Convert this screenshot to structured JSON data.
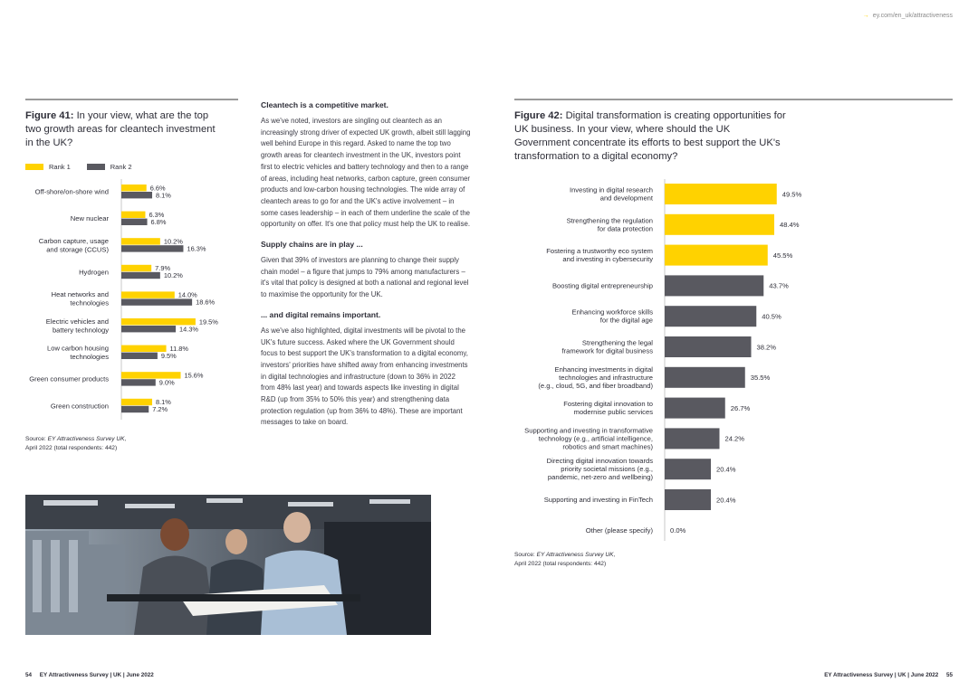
{
  "header": {
    "url": "ey.com/en_uk/attractiveness"
  },
  "fig41": {
    "label": "Figure 41:",
    "title": "In your view, what are the top two growth areas for cleantech investment in the UK?",
    "source_prefix": "Source: ",
    "source_title": "EY Attractiveness Survey UK,",
    "source_suffix": "April 2022 (total respondents: 442)"
  },
  "fig42": {
    "label": "Figure 42:",
    "title": "Digital transformation is creating opportunities for UK business. In your view, where should the UK Government concentrate its efforts to best support the UK's transformation to a digital economy?",
    "source_prefix": "Source: ",
    "source_title": "EY Attractiveness Survey UK,",
    "source_suffix": "April 2022 (total respondents: 442)"
  },
  "article": {
    "h1": "Cleantech is a competitive market.",
    "p1": "As we've noted, investors are singling out cleantech as an increasingly strong driver of expected UK growth, albeit still lagging well behind Europe in this regard. Asked to name the top two growth areas for cleantech investment in the UK, investors point first to electric vehicles and battery technology and then to a range of areas, including heat networks, carbon capture, green consumer products and low-carbon housing technologies. The wide array of cleantech areas to go for and the UK's active involvement – in some cases leadership – in each of them underline the scale of the opportunity on offer. It's one that policy must help the UK to realise.",
    "h2": "Supply chains are in play ...",
    "p2": "Given that 39% of investors are planning to change their supply chain model – a figure that jumps to 79% among manufacturers – it's vital that policy is designed at both a national and regional level to maximise the opportunity for the UK.",
    "h3": "... and digital remains important.",
    "p3": "As we've also highlighted, digital investments will be pivotal to the UK's future success. Asked where the UK Government should focus to best support the UK's transformation to a digital economy, investors' priorities have shifted away from enhancing investments in digital technologies and infrastructure (down to 36% in 2022 from 48% last year) and towards aspects like investing in digital R&D (up from 35% to 50% this year) and strengthening data protection regulation (up from 36% to 48%). These are important messages to take on board."
  },
  "footer": {
    "left_page": "54",
    "left_text": "EY Attractiveness Survey | UK | June 2022",
    "right_text": "EY Attractiveness Survey | UK | June 2022",
    "right_page": "55"
  },
  "colors": {
    "rank1": "#ffd200",
    "rank2": "#595960",
    "text": "#2e2e38"
  },
  "chart_data": [
    {
      "type": "bar",
      "orientation": "horizontal",
      "categories": [
        [
          "Off-shore/on-shore wind"
        ],
        [
          "New nuclear"
        ],
        [
          "Carbon capture, usage",
          "and storage (CCUS)"
        ],
        [
          "Hydrogen"
        ],
        [
          "Heat networks and",
          "technologies"
        ],
        [
          "Electric vehicles and",
          "battery technology"
        ],
        [
          "Low carbon housing",
          "technologies"
        ],
        [
          "Green consumer products"
        ],
        [
          "Green construction"
        ]
      ],
      "series": [
        {
          "name": "Rank 1",
          "values": [
            6.6,
            6.3,
            10.2,
            7.9,
            14.0,
            19.5,
            11.8,
            15.6,
            8.1
          ]
        },
        {
          "name": "Rank 2",
          "values": [
            8.1,
            6.8,
            16.3,
            10.2,
            18.6,
            14.3,
            9.5,
            9.0,
            7.2
          ]
        }
      ],
      "unit": "%",
      "legend": "top-left"
    },
    {
      "type": "bar",
      "orientation": "horizontal",
      "categories": [
        [
          "Investing in digital research",
          "and development"
        ],
        [
          "Strengthening the regulation",
          "for data protection"
        ],
        [
          "Fostering a trustworthy eco system",
          "and investing in cybersecurity"
        ],
        [
          "Boosting digital entrepreneurship"
        ],
        [
          "Enhancing workforce skills",
          "for the digital age"
        ],
        [
          "Strengthening the legal",
          "framework for digital business"
        ],
        [
          "Enhancing investments in digital",
          "technologies and infrastructure",
          "(e.g., cloud, 5G, and fiber broadband)"
        ],
        [
          "Fostering digital innovation to",
          "modernise public services"
        ],
        [
          "Supporting and investing in transformative",
          "technology (e.g., artificial intelligence,",
          "robotics and smart machines)"
        ],
        [
          "Directing digital innovation towards",
          "priority societal missions (e.g.,",
          "pandemic, net-zero and wellbeing)"
        ],
        [
          "Supporting and investing in FinTech"
        ],
        [
          "Other (please specify)"
        ]
      ],
      "values": [
        49.5,
        48.4,
        45.5,
        43.7,
        40.5,
        38.2,
        35.5,
        26.7,
        24.2,
        20.4,
        20.4,
        0.0
      ],
      "highlighted_top": 3,
      "unit": "%"
    }
  ]
}
